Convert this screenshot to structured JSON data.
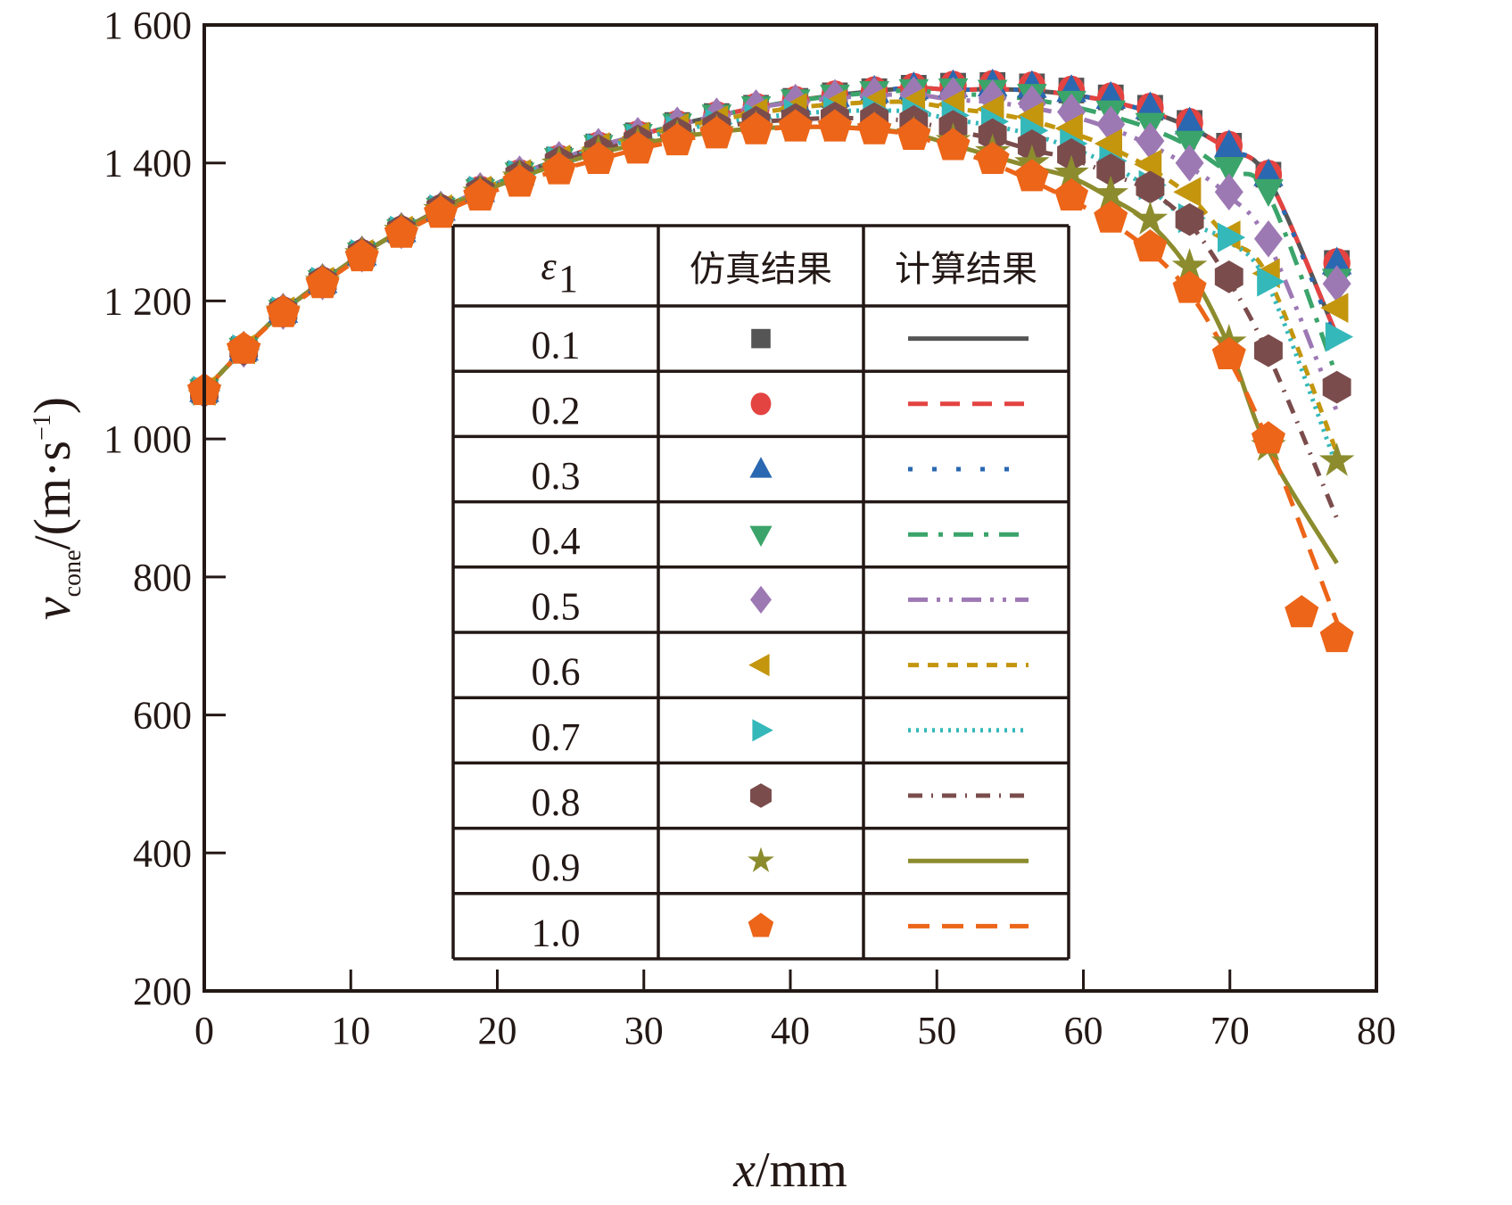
{
  "chart_data": {
    "type": "line",
    "title": "",
    "xlabel": "x/mm",
    "xlabel_italic_part": "x",
    "xlabel_rest": "/mm",
    "ylabel": "v_cone/(m·s⁻¹)",
    "ylabel_main": "v",
    "ylabel_sub": "cone",
    "ylabel_unit": "/(m·s",
    "ylabel_exp": "−1",
    "ylabel_close": ")",
    "xlim": [
      0,
      80
    ],
    "ylim": [
      200,
      1600
    ],
    "xticks": [
      0,
      10,
      20,
      30,
      40,
      50,
      60,
      70,
      80
    ],
    "xtick_labels": [
      "0",
      "10",
      "20",
      "30",
      "40",
      "50",
      "60",
      "70",
      "80"
    ],
    "yticks": [
      200,
      400,
      600,
      800,
      1000,
      1200,
      1400,
      1600
    ],
    "ytick_labels": [
      "200",
      "400",
      "600",
      "800",
      "1 000",
      "1 200",
      "1 400",
      "1 600"
    ],
    "grid": false,
    "legend": {
      "placement": "center",
      "header": [
        "ε1",
        "仿真结果",
        "计算结果"
      ],
      "header_eps": "ε",
      "header_eps_sub": "1"
    },
    "x": [
      0,
      2.69,
      5.38,
      8.07,
      10.76,
      13.45,
      16.14,
      18.83,
      21.52,
      24.21,
      26.9,
      29.59,
      32.28,
      34.97,
      37.66,
      40.35,
      43.04,
      45.73,
      48.42,
      51.11,
      53.8,
      56.49,
      59.18,
      61.87,
      64.56,
      67.25,
      69.94,
      72.63,
      77.3
    ],
    "series": [
      {
        "name": "0.1",
        "color": "#555555",
        "marker": "square",
        "line_style": "solid",
        "sim": [
          1070,
          1130,
          1185,
          1228,
          1268,
          1302,
          1333,
          1360,
          1384,
          1405,
          1424,
          1440,
          1455,
          1468,
          1480,
          1490,
          1498,
          1504,
          1509,
          1512,
          1513,
          1511,
          1505,
          1495,
          1480,
          1458,
          1425,
          1383,
          1255
        ],
        "calc_end": 1150
      },
      {
        "name": "0.2",
        "color": "#E34341",
        "marker": "circle",
        "line_style": "dashed",
        "sim": [
          1070,
          1130,
          1185,
          1228,
          1268,
          1302,
          1333,
          1360,
          1384,
          1405,
          1424,
          1440,
          1455,
          1468,
          1480,
          1490,
          1498,
          1504,
          1509,
          1512,
          1513,
          1511,
          1505,
          1495,
          1480,
          1458,
          1425,
          1383,
          1255
        ],
        "calc_end": 1150
      },
      {
        "name": "0.3",
        "color": "#2A68B1",
        "marker": "triangle-up",
        "line_style": "dotted",
        "sim": [
          1070,
          1130,
          1185,
          1228,
          1268,
          1302,
          1333,
          1360,
          1384,
          1405,
          1424,
          1440,
          1455,
          1468,
          1480,
          1490,
          1498,
          1504,
          1509,
          1512,
          1513,
          1511,
          1505,
          1495,
          1480,
          1458,
          1425,
          1383,
          1255
        ],
        "calc_end": 1140
      },
      {
        "name": "0.4",
        "color": "#3BA46A",
        "marker": "triangle-down",
        "line_style": "dashdot",
        "sim": [
          1070,
          1130,
          1185,
          1228,
          1268,
          1302,
          1333,
          1360,
          1384,
          1405,
          1424,
          1440,
          1455,
          1468,
          1480,
          1490,
          1497,
          1502,
          1505,
          1506,
          1504,
          1498,
          1488,
          1474,
          1456,
          1430,
          1392,
          1360,
          1230
        ],
        "calc_end": 1090
      },
      {
        "name": "0.5",
        "color": "#9D79B4",
        "marker": "diamond",
        "line_style": "dashdotdot",
        "sim": [
          1070,
          1130,
          1185,
          1228,
          1268,
          1302,
          1333,
          1360,
          1384,
          1405,
          1424,
          1440,
          1455,
          1468,
          1480,
          1488,
          1494,
          1498,
          1499,
          1498,
          1494,
          1486,
          1474,
          1456,
          1432,
          1400,
          1358,
          1290,
          1225
        ],
        "calc_end": 1040
      },
      {
        "name": "0.6",
        "color": "#C3960E",
        "marker": "triangle-left",
        "line_style": "short-dash",
        "sim": [
          1070,
          1130,
          1185,
          1228,
          1268,
          1302,
          1333,
          1360,
          1384,
          1405,
          1423,
          1438,
          1451,
          1462,
          1472,
          1480,
          1485,
          1488,
          1488,
          1485,
          1478,
          1467,
          1450,
          1428,
          1398,
          1358,
          1295,
          1240,
          1190
        ],
        "calc_end": 980
      },
      {
        "name": "0.7",
        "color": "#35B8BA",
        "marker": "triangle-right",
        "line_style": "fine-dot",
        "sim": [
          1070,
          1130,
          1185,
          1228,
          1268,
          1302,
          1333,
          1360,
          1383,
          1403,
          1421,
          1435,
          1447,
          1457,
          1465,
          1471,
          1475,
          1476,
          1474,
          1469,
          1460,
          1447,
          1428,
          1403,
          1368,
          1320,
          1292,
          1228,
          1148
        ],
        "calc_end": 960
      },
      {
        "name": "0.8",
        "color": "#7B4C4C",
        "marker": "hexagon",
        "line_style": "dash-dot-fine",
        "sim": [
          1070,
          1130,
          1185,
          1228,
          1268,
          1302,
          1333,
          1358,
          1381,
          1401,
          1418,
          1432,
          1443,
          1452,
          1459,
          1463,
          1465,
          1464,
          1460,
          1453,
          1441,
          1425,
          1412,
          1390,
          1365,
          1318,
          1235,
          1128,
          1075
        ],
        "calc_end": 885
      },
      {
        "name": "0.9",
        "color": "#8C8C2E",
        "marker": "star",
        "line_style": "solid",
        "sim": [
          1070,
          1130,
          1185,
          1228,
          1268,
          1302,
          1332,
          1357,
          1379,
          1398,
          1414,
          1427,
          1437,
          1445,
          1450,
          1452,
          1452,
          1449,
          1442,
          1432,
          1416,
          1400,
          1385,
          1355,
          1318,
          1250,
          1140,
          990,
          968
        ],
        "calc_end": 820
      },
      {
        "name": "1.0",
        "color": "#EC6518",
        "marker": "pentagon",
        "line_style": "long-dash",
        "sim": [
          1070,
          1130,
          1183,
          1225,
          1264,
          1298,
          1327,
          1352,
          1372,
          1390,
          1405,
          1420,
          1432,
          1442,
          1448,
          1452,
          1452,
          1448,
          1440,
          1425,
          1405,
          1380,
          1352,
          1320,
          1278,
          1218,
          1122,
          1000,
          712
        ],
        "sim_extra_point": {
          "x": 74.9,
          "y": 748
        },
        "calc_end": 735
      }
    ]
  }
}
